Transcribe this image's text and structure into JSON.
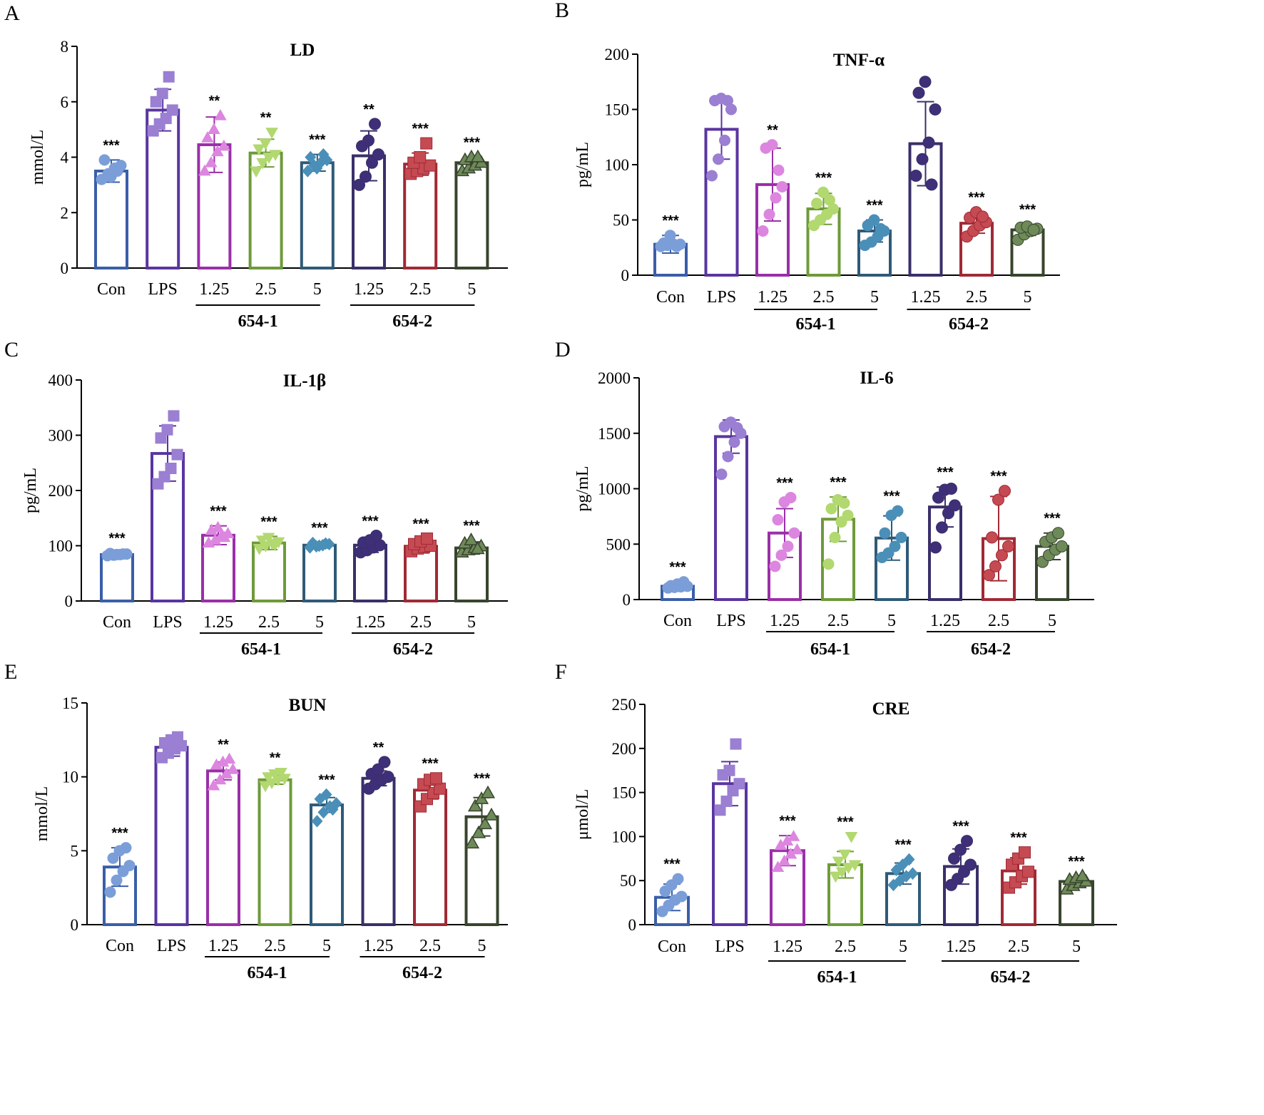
{
  "palette": {
    "Con": "#3a5ea8",
    "LPS": "#5a35a0",
    "654-1 1.25": "#9a2fa8",
    "654-1 2.5": "#6e9a3a",
    "654-1 5": "#2f5a78",
    "654-2 1.25": "#3a2f6a",
    "654-2 2.5": "#a02a35",
    "654-2 5": "#38452e"
  },
  "point_palette": {
    "Con": "#7b9ed8",
    "LPS": "#9a7fd2",
    "654-1 1.25": "#dc86e0",
    "654-1 2.5": "#b2d870",
    "654-1 5": "#4a8fb8",
    "654-2 1.25": "#3e2f78",
    "654-2 2.5": "#c54a52",
    "654-2 5": "#6e8a58"
  },
  "group_labels": [
    "654-1",
    "654-2"
  ],
  "chart_data": [
    {
      "panel": "A",
      "type": "bar",
      "title": "LD",
      "ylabel": "mmol/L",
      "ylim": [
        0,
        8
      ],
      "yticks": [
        0,
        2,
        4,
        6,
        8
      ],
      "categories": [
        "Con",
        "LPS",
        "1.25",
        "2.5",
        "5",
        "1.25",
        "2.5",
        "5"
      ],
      "values": [
        3.5,
        5.7,
        4.45,
        4.15,
        3.8,
        4.05,
        3.75,
        3.8
      ],
      "errors": [
        0.4,
        0.75,
        1.0,
        0.5,
        0.3,
        0.9,
        0.4,
        0.2
      ],
      "markers": [
        "circle",
        "square",
        "triangle-up",
        "triangle-down",
        "diamond",
        "circle",
        "square",
        "triangle-up"
      ],
      "points": [
        [
          3.2,
          3.4,
          3.6,
          3.7,
          3.9,
          3.3,
          3.5
        ],
        [
          4.95,
          5.2,
          5.4,
          5.7,
          6.0,
          6.3,
          6.9
        ],
        [
          3.5,
          3.8,
          4.2,
          4.4,
          4.7,
          5.0,
          5.5
        ],
        [
          3.5,
          3.8,
          4.0,
          4.1,
          4.3,
          4.5,
          4.9
        ],
        [
          3.5,
          3.7,
          3.8,
          3.9,
          4.0,
          3.6,
          4.1
        ],
        [
          3.0,
          3.3,
          3.8,
          4.1,
          4.4,
          4.6,
          5.2
        ],
        [
          3.4,
          3.5,
          3.6,
          3.7,
          3.8,
          4.0,
          4.5
        ],
        [
          3.5,
          3.6,
          3.7,
          3.8,
          3.9,
          4.0,
          4.0
        ]
      ],
      "significance": [
        "***",
        "",
        "**",
        "**",
        "***",
        "**",
        "***",
        "***"
      ]
    },
    {
      "panel": "B",
      "type": "bar",
      "title": "TNF-α",
      "ylabel": "pg/mL",
      "ylim": [
        0,
        200
      ],
      "yticks": [
        0,
        50,
        100,
        150,
        200
      ],
      "categories": [
        "Con",
        "LPS",
        "1.25",
        "2.5",
        "5",
        "1.25",
        "2.5",
        "5"
      ],
      "values": [
        28,
        132,
        82,
        60,
        40,
        119,
        47,
        41
      ],
      "errors": [
        8,
        27,
        33,
        14,
        10,
        38,
        9,
        5
      ],
      "markers": [
        "circle",
        "circle",
        "circle",
        "circle",
        "circle",
        "circle",
        "circle",
        "circle"
      ],
      "points": [
        [
          26,
          27,
          28,
          28,
          29,
          36,
          26
        ],
        [
          90,
          105,
          122,
          150,
          158,
          160,
          158
        ],
        [
          40,
          55,
          70,
          80,
          115,
          118,
          95
        ],
        [
          45,
          50,
          55,
          60,
          65,
          75,
          68
        ],
        [
          27,
          30,
          35,
          40,
          45,
          50,
          42
        ],
        [
          90,
          105,
          120,
          150,
          165,
          175,
          82
        ],
        [
          35,
          40,
          45,
          48,
          52,
          57,
          53
        ],
        [
          32,
          37,
          40,
          42,
          43,
          44,
          41
        ]
      ],
      "significance": [
        "***",
        "",
        "**",
        "***",
        "***",
        "",
        "***",
        "***"
      ]
    },
    {
      "panel": "C",
      "type": "bar",
      "title": "IL-1β",
      "ylabel": "pg/mL",
      "ylim": [
        0,
        400
      ],
      "yticks": [
        0,
        100,
        200,
        300,
        400
      ],
      "categories": [
        "Con",
        "LPS",
        "1.25",
        "2.5",
        "5",
        "1.25",
        "2.5",
        "5"
      ],
      "values": [
        84,
        267,
        119,
        105,
        101,
        101,
        99,
        96
      ],
      "errors": [
        3,
        50,
        17,
        12,
        5,
        13,
        12,
        11
      ],
      "markers": [
        "circle",
        "square",
        "triangle-up",
        "triangle-down",
        "diamond",
        "circle",
        "square",
        "triangle-up"
      ],
      "points": [
        [
          82,
          83,
          84,
          85,
          86,
          84,
          85
        ],
        [
          212,
          225,
          240,
          265,
          295,
          310,
          335
        ],
        [
          105,
          110,
          118,
          122,
          128,
          133,
          115
        ],
        [
          95,
          100,
          104,
          107,
          110,
          115,
          102
        ],
        [
          97,
          99,
          101,
          103,
          105,
          100,
          104
        ],
        [
          88,
          92,
          97,
          101,
          106,
          110,
          118
        ],
        [
          90,
          95,
          98,
          100,
          103,
          108,
          113
        ],
        [
          88,
          92,
          96,
          99,
          104,
          110,
          94
        ]
      ],
      "significance": [
        "***",
        "",
        "***",
        "***",
        "***",
        "***",
        "***",
        "***"
      ]
    },
    {
      "panel": "D",
      "type": "bar",
      "title": "IL-6",
      "ylabel": "pg/mL",
      "ylim": [
        0,
        2000
      ],
      "yticks": [
        0,
        500,
        1000,
        1500,
        2000
      ],
      "categories": [
        "Con",
        "LPS",
        "1.25",
        "2.5",
        "5",
        "1.25",
        "2.5",
        "5"
      ],
      "values": [
        120,
        1470,
        600,
        725,
        555,
        835,
        550,
        480
      ],
      "errors": [
        25,
        150,
        220,
        200,
        200,
        180,
        380,
        120
      ],
      "markers": [
        "circle",
        "circle",
        "circle",
        "circle",
        "circle",
        "circle",
        "circle",
        "circle"
      ],
      "points": [
        [
          105,
          110,
          115,
          120,
          125,
          140,
          160
        ],
        [
          1130,
          1290,
          1420,
          1500,
          1560,
          1600,
          1550
        ],
        [
          300,
          400,
          480,
          600,
          720,
          880,
          920
        ],
        [
          320,
          560,
          700,
          760,
          820,
          900,
          870
        ],
        [
          380,
          420,
          480,
          560,
          600,
          760,
          800
        ],
        [
          470,
          650,
          780,
          850,
          920,
          990,
          1000
        ],
        [
          220,
          300,
          400,
          480,
          560,
          900,
          980
        ],
        [
          340,
          400,
          450,
          480,
          520,
          560,
          600
        ]
      ],
      "significance": [
        "***",
        "",
        "***",
        "***",
        "***",
        "***",
        "***",
        "***"
      ]
    },
    {
      "panel": "E",
      "type": "bar",
      "title": "BUN",
      "ylabel": "mmol/L",
      "ylim": [
        0,
        15
      ],
      "yticks": [
        0,
        5,
        10,
        15
      ],
      "categories": [
        "Con",
        "LPS",
        "1.25",
        "2.5",
        "5",
        "1.25",
        "2.5",
        "5"
      ],
      "values": [
        3.9,
        12.0,
        10.4,
        9.8,
        8.1,
        9.9,
        9.1,
        7.3
      ],
      "errors": [
        1.3,
        0.6,
        0.6,
        0.3,
        0.5,
        0.5,
        0.6,
        1.3
      ],
      "markers": [
        "circle",
        "square",
        "triangle-up",
        "triangle-down",
        "diamond",
        "circle",
        "square",
        "triangle-up"
      ],
      "points": [
        [
          2.2,
          3.0,
          3.6,
          4.0,
          4.5,
          5.0,
          5.2
        ],
        [
          11.3,
          11.6,
          11.9,
          12.1,
          12.3,
          12.5,
          12.7
        ],
        [
          9.4,
          9.8,
          10.2,
          10.5,
          10.8,
          11.0,
          11.2
        ],
        [
          9.4,
          9.6,
          9.8,
          9.9,
          10.0,
          10.2,
          10.3
        ],
        [
          7.0,
          7.6,
          8.0,
          8.2,
          8.5,
          8.8,
          7.8
        ],
        [
          9.2,
          9.5,
          9.8,
          10.0,
          10.2,
          10.5,
          11.0
        ],
        [
          8.0,
          8.5,
          8.9,
          9.2,
          9.5,
          9.8,
          9.9
        ],
        [
          5.5,
          6.2,
          6.8,
          7.4,
          8.0,
          8.5,
          8.9
        ]
      ],
      "significance": [
        "***",
        "",
        "**",
        "**",
        "***",
        "**",
        "***",
        "***"
      ]
    },
    {
      "panel": "F",
      "type": "bar",
      "title": "CRE",
      "ylabel": "μmol/L",
      "ylim": [
        0,
        250
      ],
      "yticks": [
        0,
        50,
        100,
        150,
        200,
        250
      ],
      "categories": [
        "Con",
        "LPS",
        "1.25",
        "2.5",
        "5",
        "1.25",
        "2.5",
        "5"
      ],
      "values": [
        31,
        160,
        84,
        68,
        58,
        66,
        61,
        49
      ],
      "errors": [
        15,
        25,
        17,
        15,
        12,
        20,
        15,
        5
      ],
      "markers": [
        "circle",
        "square",
        "triangle-up",
        "triangle-down",
        "diamond",
        "circle",
        "square",
        "triangle-up"
      ],
      "points": [
        [
          15,
          22,
          28,
          32,
          38,
          45,
          52
        ],
        [
          130,
          140,
          152,
          160,
          170,
          175,
          205
        ],
        [
          65,
          72,
          80,
          85,
          90,
          95,
          100
        ],
        [
          55,
          60,
          65,
          68,
          72,
          80,
          100
        ],
        [
          45,
          50,
          55,
          58,
          62,
          68,
          74
        ],
        [
          45,
          52,
          60,
          68,
          75,
          85,
          95
        ],
        [
          42,
          48,
          55,
          60,
          68,
          75,
          82
        ],
        [
          40,
          44,
          47,
          49,
          51,
          53,
          55
        ]
      ],
      "significance": [
        "***",
        "",
        "***",
        "***",
        "***",
        "***",
        "***",
        "***"
      ]
    }
  ]
}
